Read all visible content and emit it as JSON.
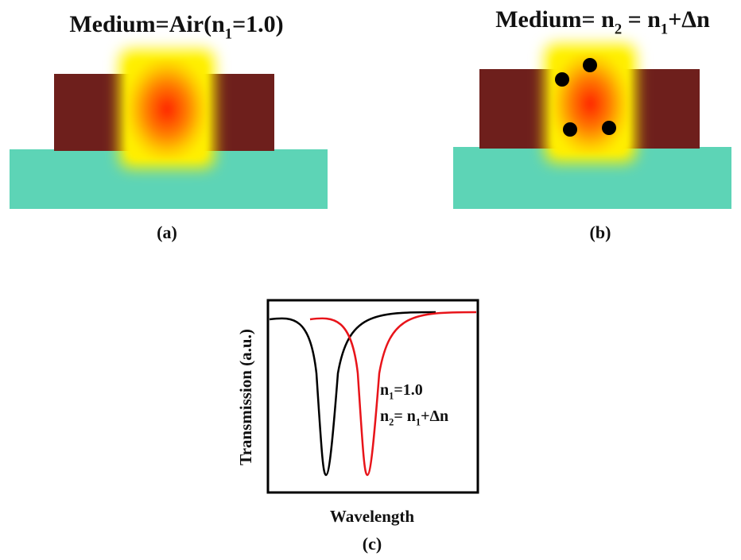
{
  "panels": [
    {
      "title": [
        "Medium=Air(n",
        "1",
        "=1.0)"
      ],
      "caption": "(a)"
    },
    {
      "title": [
        "Medium= n",
        "2",
        " = n",
        "1",
        "+Δn"
      ],
      "caption": "(b)"
    }
  ],
  "plot": {
    "y_axis_label": "Transmission (a.u.)",
    "x_axis_label": "Wavelength",
    "legend": [
      [
        "n",
        "1",
        "=1.0"
      ],
      [
        "n",
        "2",
        "= n",
        "1",
        "+Δn"
      ]
    ],
    "caption": "(c)"
  }
}
